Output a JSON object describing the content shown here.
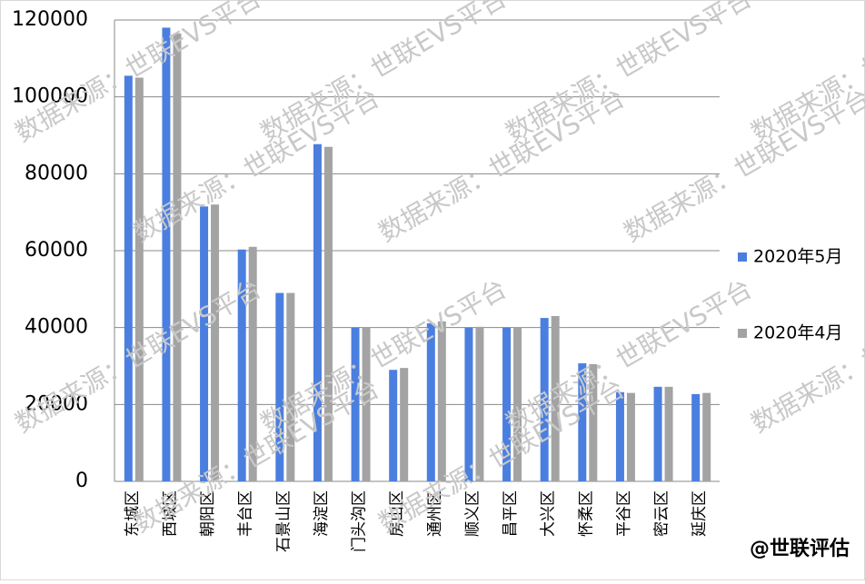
{
  "chart_data": {
    "type": "bar",
    "categories": [
      "东城区",
      "西城区",
      "朝阳区",
      "丰台区",
      "石景山区",
      "海淀区",
      "门头沟区",
      "房山区",
      "通州区",
      "顺义区",
      "昌平区",
      "大兴区",
      "怀柔区",
      "平谷区",
      "密云区",
      "延庆区"
    ],
    "series": [
      {
        "name": "2020年5月",
        "color": "#4a7fe0",
        "values": [
          105500,
          118000,
          71500,
          60300,
          49000,
          87700,
          40000,
          29000,
          41100,
          40000,
          40000,
          42500,
          30700,
          23200,
          24600,
          22700
        ]
      },
      {
        "name": "2020年4月",
        "color": "#a3a3a3",
        "values": [
          105000,
          116500,
          72000,
          61000,
          49000,
          87000,
          40000,
          29500,
          41600,
          40200,
          40000,
          43000,
          30500,
          23000,
          24600,
          23000
        ]
      }
    ],
    "ylim": [
      0,
      120000
    ],
    "yticks": [
      0,
      20000,
      40000,
      60000,
      80000,
      100000,
      120000
    ],
    "grid": true,
    "legend": "right",
    "watermark": "数据来源：世联EVS平台",
    "credit": "@世联评估"
  }
}
